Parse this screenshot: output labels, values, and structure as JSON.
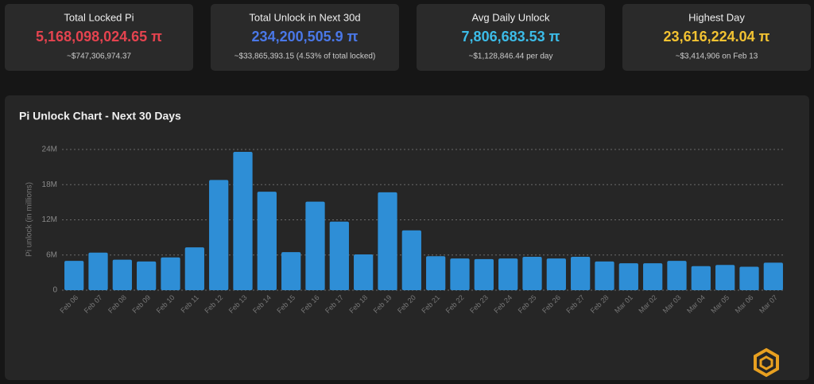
{
  "cards": [
    {
      "label": "Total Locked Pi",
      "value": "5,168,098,024.65 π",
      "sub": "~$747,306,974.37",
      "color": "#e5434f"
    },
    {
      "label": "Total Unlock in Next 30d",
      "value": "234,200,505.9 π",
      "sub": "~$33,865,393.15 (4.53% of total locked)",
      "color": "#4a78e8"
    },
    {
      "label": "Avg Daily Unlock",
      "value": "7,806,683.53 π",
      "sub": "~$1,128,846.44 per day",
      "color": "#3cbce8"
    },
    {
      "label": "Highest Day",
      "value": "23,616,224.04 π",
      "sub": "~$3,414,906 on Feb 13",
      "color": "#f2c232"
    }
  ],
  "chart_data": {
    "type": "bar",
    "title": "Pi Unlock Chart - Next 30 Days",
    "y_label": "Pi unlock (in millions)",
    "categories": [
      "Feb 06",
      "Feb 07",
      "Feb 08",
      "Feb 09",
      "Feb 10",
      "Feb 11",
      "Feb 12",
      "Feb 13",
      "Feb 14",
      "Feb 15",
      "Feb 16",
      "Feb 17",
      "Feb 18",
      "Feb 19",
      "Feb 20",
      "Feb 21",
      "Feb 22",
      "Feb 23",
      "Feb 24",
      "Feb 25",
      "Feb 26",
      "Feb 27",
      "Feb 28",
      "Mar 01",
      "Mar 02",
      "Mar 03",
      "Mar 04",
      "Mar 05",
      "Mar 06",
      "Mar 07"
    ],
    "values": [
      5.0,
      6.4,
      5.2,
      4.9,
      5.6,
      7.3,
      18.8,
      23.6,
      16.8,
      6.5,
      15.1,
      11.7,
      6.1,
      16.7,
      10.2,
      5.8,
      5.4,
      5.3,
      5.4,
      5.7,
      5.4,
      5.7,
      4.9,
      4.6,
      4.6,
      5.0,
      4.1,
      4.3,
      4.0,
      4.7
    ],
    "color": "#2e8ed6",
    "ylim": [
      0,
      24
    ],
    "yticks": [
      0,
      {
        "value": 6,
        "label": "6M"
      },
      {
        "value": 12,
        "label": "12M"
      },
      {
        "value": 18,
        "label": "18M"
      },
      {
        "value": 24,
        "label": "24M"
      }
    ],
    "grid": true
  }
}
